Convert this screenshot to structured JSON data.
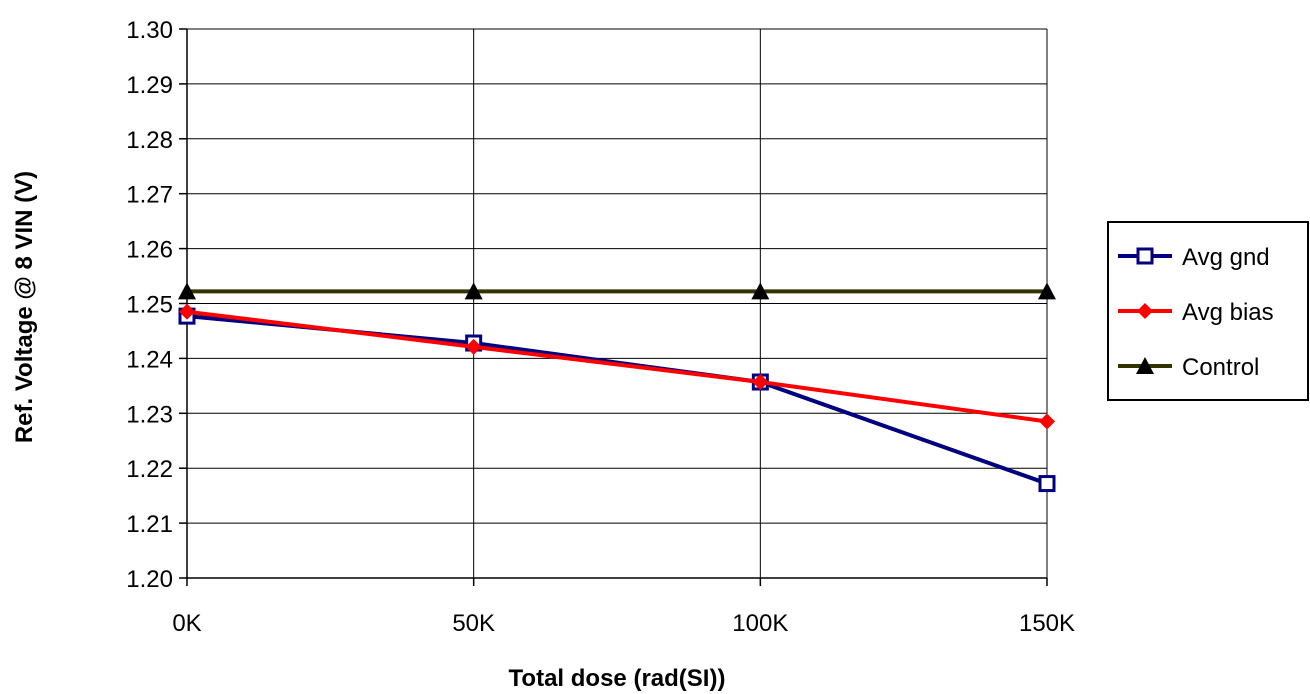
{
  "chart_data": {
    "type": "line",
    "title": "",
    "xlabel": "Total dose (rad(SI))",
    "ylabel": "Ref. Voltage @ 8 VIN (V)",
    "categories": [
      "0K",
      "50K",
      "100K",
      "150K"
    ],
    "ylim": [
      1.2,
      1.3
    ],
    "yticks": [
      "1.20",
      "1.21",
      "1.22",
      "1.23",
      "1.24",
      "1.25",
      "1.26",
      "1.27",
      "1.28",
      "1.29",
      "1.30"
    ],
    "grid": true,
    "legend_position": "right",
    "series": [
      {
        "name": "Avg gnd",
        "values": [
          1.2477,
          1.2428,
          1.2357,
          1.2172
        ],
        "color": "#000080",
        "marker": "square"
      },
      {
        "name": "Avg bias",
        "values": [
          1.2485,
          1.2421,
          1.2357,
          1.2285
        ],
        "color": "#ff0000",
        "marker": "diamond"
      },
      {
        "name": "Control",
        "values": [
          1.2522,
          1.2522,
          1.2522,
          1.2522
        ],
        "color": "#333300",
        "marker": "triangle"
      }
    ]
  }
}
